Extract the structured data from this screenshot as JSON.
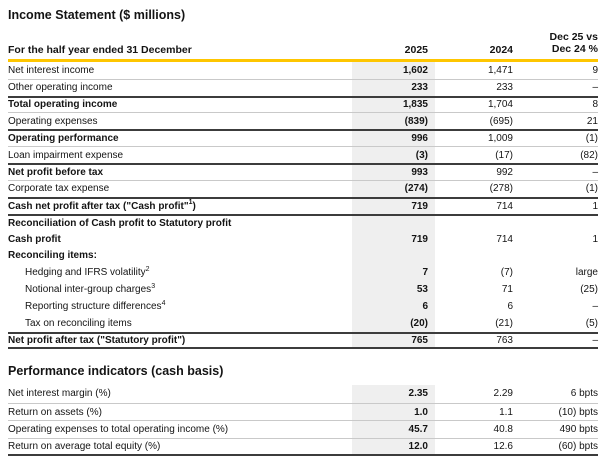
{
  "page": {
    "title": "Income Statement ($ millions)",
    "colors": {
      "accent_gold": "#FEC600",
      "column_shade_gray": "#EFEFEF",
      "rule_dark": "#3C3C3C",
      "rule_light": "#C9C9C9"
    }
  },
  "income_statement": {
    "header": {
      "label": "For the half year ended 31 December",
      "col_2025": "2025",
      "col_2024": "2024",
      "col_change_line1": "Dec 25 vs",
      "col_change_line2": "Dec 24 %"
    },
    "rows": [
      {
        "label": "Net interest income",
        "v2025": "1,602",
        "v2024": "1,471",
        "change": "9"
      },
      {
        "label": "Other operating income",
        "v2025": "233",
        "v2024": "233",
        "change": "–",
        "rt": "thin"
      },
      {
        "label": "Total operating income",
        "bold": true,
        "v2025": "1,835",
        "v2024": "1,704",
        "change": "8",
        "rt": "thick"
      },
      {
        "label": "Operating expenses",
        "v2025": "(839)",
        "v2024": "(695)",
        "change": "21",
        "rt": "thin"
      },
      {
        "label": "Operating performance",
        "bold": true,
        "v2025": "996",
        "v2024": "1,009",
        "change": "(1)",
        "rt": "thick"
      },
      {
        "label": "Loan impairment expense",
        "v2025": "(3)",
        "v2024": "(17)",
        "change": "(82)",
        "rt": "thin"
      },
      {
        "label": "Net profit before tax",
        "bold": true,
        "v2025": "993",
        "v2024": "992",
        "change": "–",
        "rt": "thick"
      },
      {
        "label": "Corporate tax expense",
        "v2025": "(274)",
        "v2024": "(278)",
        "change": "(1)",
        "rt": "thin"
      },
      {
        "label": "Cash net profit after tax (\"Cash profit\"",
        "sup": "1",
        "suffix": ")",
        "bold": true,
        "v2025": "719",
        "v2024": "714",
        "change": "1",
        "rt": "thick"
      },
      {
        "label": "Reconciliation of Cash profit to Statutory profit",
        "bold": true,
        "heading": true,
        "rt": "thick"
      },
      {
        "label": "Cash profit",
        "bold": true,
        "v2025": "719",
        "v2024": "714",
        "change": "1"
      },
      {
        "label": "Reconciling items:",
        "bold": true,
        "heading": true
      },
      {
        "label": "Hedging and IFRS volatility",
        "sup": "2",
        "indent": true,
        "v2025": "7",
        "v2024": "(7)",
        "change": "large"
      },
      {
        "label": "Notional inter-group charges",
        "sup": "3",
        "indent": true,
        "v2025": "53",
        "v2024": "71",
        "change": "(25)"
      },
      {
        "label": "Reporting structure differences",
        "sup": "4",
        "indent": true,
        "v2025": "6",
        "v2024": "6",
        "change": "–"
      },
      {
        "label": "Tax on reconciling items",
        "indent": true,
        "v2025": "(20)",
        "v2024": "(21)",
        "change": "(5)"
      },
      {
        "label": "Net profit after tax (\"Statutory profit\")",
        "bold": true,
        "v2025": "765",
        "v2024": "763",
        "change": "–",
        "rt": "thick",
        "rb": "thick"
      }
    ]
  },
  "performance_indicators": {
    "title": "Performance indicators (cash basis)",
    "rows": [
      {
        "label": "Net interest margin (%)",
        "v2025": "2.35",
        "v2024": "2.29",
        "change": "6 bpts"
      },
      {
        "label": "Return on assets (%)",
        "v2025": "1.0",
        "v2024": "1.1",
        "change": "(10) bpts",
        "rt": "thin"
      },
      {
        "label": "Operating expenses to total operating income (%)",
        "v2025": "45.7",
        "v2024": "40.8",
        "change": "490 bpts",
        "rt": "thin"
      },
      {
        "label": "Return on average total equity (%)",
        "v2025": "12.0",
        "v2024": "12.6",
        "change": "(60) bpts",
        "rt": "thin",
        "rb": "thick"
      }
    ]
  }
}
